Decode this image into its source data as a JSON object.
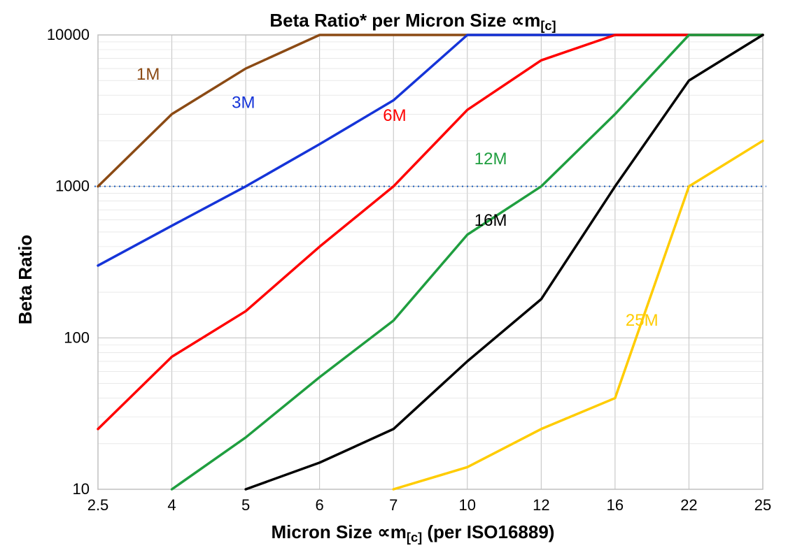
{
  "chart": {
    "type": "line",
    "title": "Beta Ratio* per Micron Size ∝m[c]",
    "title_fontsize": 26,
    "xlabel": "Micron Size ∝m[c] (per ISO16889)",
    "ylabel": "Beta Ratio",
    "label_fontsize": 26,
    "tick_fontsize": 22,
    "background_color": "#ffffff",
    "grid_color": "#c0c0c0",
    "grid_minor_color": "#dcdcdc",
    "border_color": "#c0c0c0",
    "line_width": 3.5,
    "x_scale": "categorical",
    "x_categories": [
      "2.5",
      "4",
      "5",
      "6",
      "7",
      "10",
      "12",
      "16",
      "22",
      "25"
    ],
    "y_scale": "log",
    "ylim": [
      10,
      10000
    ],
    "y_ticks": [
      10,
      100,
      1000,
      10000
    ],
    "y_tick_labels": [
      "10",
      "100",
      "1000",
      "10000"
    ],
    "reference_line": {
      "y": 1000,
      "color": "#1f5fbf",
      "dash": "2 5",
      "width": 2
    },
    "series": [
      {
        "name": "1M",
        "color": "#8b4a14",
        "label_pos": {
          "xcat": "2.5",
          "y": 4800,
          "dx": 55,
          "dy": -5
        },
        "points": [
          [
            0,
            1000
          ],
          [
            1,
            3000
          ],
          [
            2,
            6000
          ],
          [
            3,
            10000
          ],
          [
            9,
            10000
          ]
        ]
      },
      {
        "name": "3M",
        "color": "#1534d8",
        "label_pos": {
          "xcat": "5",
          "y": 3300,
          "dx": -20,
          "dy": 0
        },
        "points": [
          [
            0,
            300
          ],
          [
            1,
            550
          ],
          [
            2,
            1000
          ],
          [
            3,
            1900
          ],
          [
            4,
            3700
          ],
          [
            5,
            10000
          ],
          [
            9,
            10000
          ]
        ]
      },
      {
        "name": "6M",
        "color": "#ff0000",
        "label_pos": {
          "xcat": "7",
          "y": 2700,
          "dx": -15,
          "dy": 0
        },
        "points": [
          [
            0,
            25
          ],
          [
            1,
            75
          ],
          [
            2,
            150
          ],
          [
            3,
            400
          ],
          [
            4,
            1000
          ],
          [
            5,
            3200
          ],
          [
            6,
            6800
          ],
          [
            7,
            10000
          ],
          [
            9,
            10000
          ]
        ]
      },
      {
        "name": "12M",
        "color": "#1f9e3f",
        "label_pos": {
          "xcat": "10",
          "y": 1400,
          "dx": 10,
          "dy": 0
        },
        "points": [
          [
            1,
            10
          ],
          [
            2,
            22
          ],
          [
            3,
            55
          ],
          [
            4,
            130
          ],
          [
            5,
            480
          ],
          [
            6,
            1000
          ],
          [
            7,
            3000
          ],
          [
            8,
            10000
          ],
          [
            9,
            10000
          ]
        ]
      },
      {
        "name": "16M",
        "color": "#000000",
        "label_pos": {
          "xcat": "10",
          "y": 550,
          "dx": 10,
          "dy": 0
        },
        "points": [
          [
            2,
            10
          ],
          [
            3,
            15
          ],
          [
            4,
            25
          ],
          [
            5,
            70
          ],
          [
            6,
            180
          ],
          [
            7,
            1000
          ],
          [
            8,
            5000
          ],
          [
            9,
            10000
          ]
        ]
      },
      {
        "name": "25M",
        "color": "#ffcc00",
        "label_pos": {
          "xcat": "16",
          "y": 120,
          "dx": 15,
          "dy": 0
        },
        "points": [
          [
            4,
            10
          ],
          [
            5,
            14
          ],
          [
            6,
            25
          ],
          [
            7,
            40
          ],
          [
            8,
            1000
          ],
          [
            9,
            2000
          ]
        ]
      }
    ]
  }
}
